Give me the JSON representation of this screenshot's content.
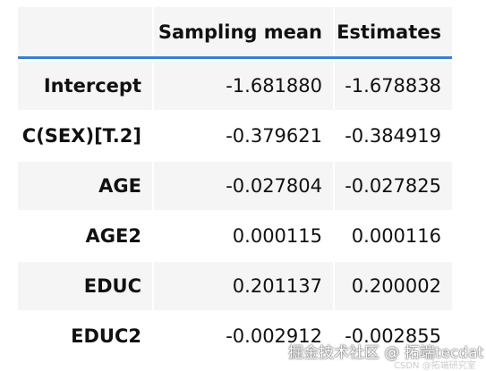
{
  "table": {
    "header": [
      "",
      "Sampling mean",
      "Estimates"
    ],
    "rows": [
      [
        "Intercept",
        "-1.681880",
        "-1.678838"
      ],
      [
        "C(SEX)[T.2]",
        "-0.379621",
        "-0.384919"
      ],
      [
        "AGE",
        "-0.027804",
        "-0.027825"
      ],
      [
        "AGE2",
        "0.000115",
        "0.000116"
      ],
      [
        "EDUC",
        "0.201137",
        "0.200002"
      ],
      [
        "EDUC2",
        "-0.002912",
        "-0.002855"
      ]
    ]
  },
  "watermark": {
    "main": "掘金技术社区 @ 拓端tecdat",
    "sub": "CSDN @拓端研究室"
  }
}
